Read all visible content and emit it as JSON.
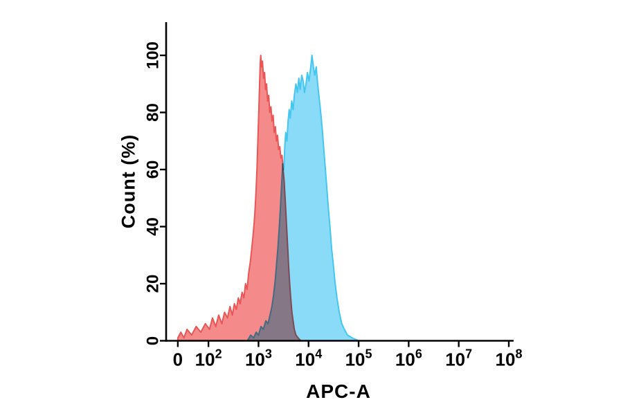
{
  "figure": {
    "background": "#ffffff",
    "axis_color": "#000000"
  },
  "chart_data": {
    "type": "area",
    "title": "",
    "xlabel": "APC-A",
    "ylabel": "Count (%)",
    "x_scale": "biexponential-log",
    "ylim": [
      0,
      100
    ],
    "grid": false,
    "legend": "none",
    "y_ticks": [
      {
        "label": "0",
        "value": 0
      },
      {
        "label": "20",
        "value": 20
      },
      {
        "label": "40",
        "value": 40
      },
      {
        "label": "60",
        "value": 60
      },
      {
        "label": "80",
        "value": 80
      },
      {
        "label": "100",
        "value": 100
      }
    ],
    "x_ticks": [
      {
        "main": "0",
        "exp": "",
        "value": 0
      },
      {
        "main": "10",
        "exp": "2",
        "value": 100
      },
      {
        "main": "10",
        "exp": "3",
        "value": 1000
      },
      {
        "main": "10",
        "exp": "4",
        "value": 10000
      },
      {
        "main": "10",
        "exp": "5",
        "value": 100000
      },
      {
        "main": "10",
        "exp": "6",
        "value": 1000000
      },
      {
        "main": "10",
        "exp": "7",
        "value": 10000000
      },
      {
        "main": "10",
        "exp": "8",
        "value": 100000000
      }
    ],
    "series": [
      {
        "name": "red-histogram",
        "fill": "#F58A8A",
        "stroke": "#EA5555",
        "points": [
          [
            0,
            1
          ],
          [
            10,
            3
          ],
          [
            20,
            1
          ],
          [
            30,
            4
          ],
          [
            45,
            2
          ],
          [
            60,
            5
          ],
          [
            75,
            3
          ],
          [
            90,
            6
          ],
          [
            105,
            4
          ],
          [
            120,
            8
          ],
          [
            140,
            5
          ],
          [
            160,
            9
          ],
          [
            185,
            6
          ],
          [
            210,
            10
          ],
          [
            240,
            8
          ],
          [
            270,
            12
          ],
          [
            300,
            9
          ],
          [
            330,
            13
          ],
          [
            360,
            11
          ],
          [
            395,
            15
          ],
          [
            430,
            13
          ],
          [
            470,
            17
          ],
          [
            510,
            15
          ],
          [
            550,
            20
          ],
          [
            590,
            18
          ],
          [
            640,
            24
          ],
          [
            690,
            28
          ],
          [
            740,
            33
          ],
          [
            790,
            38
          ],
          [
            840,
            44
          ],
          [
            890,
            52
          ],
          [
            930,
            60
          ],
          [
            970,
            70
          ],
          [
            1010,
            80
          ],
          [
            1050,
            90
          ],
          [
            1080,
            97
          ],
          [
            1110,
            100
          ],
          [
            1150,
            96
          ],
          [
            1200,
            98
          ],
          [
            1260,
            92
          ],
          [
            1320,
            94
          ],
          [
            1380,
            88
          ],
          [
            1450,
            90
          ],
          [
            1520,
            84
          ],
          [
            1600,
            86
          ],
          [
            1680,
            80
          ],
          [
            1770,
            82
          ],
          [
            1860,
            77
          ],
          [
            1960,
            79
          ],
          [
            2060,
            73
          ],
          [
            2170,
            75
          ],
          [
            2280,
            70
          ],
          [
            2400,
            72
          ],
          [
            2530,
            67
          ],
          [
            2660,
            68
          ],
          [
            2800,
            64
          ],
          [
            2950,
            65
          ],
          [
            3100,
            60
          ],
          [
            3250,
            56
          ],
          [
            3400,
            50
          ],
          [
            3550,
            44
          ],
          [
            3700,
            38
          ],
          [
            3850,
            32
          ],
          [
            4000,
            26
          ],
          [
            4200,
            20
          ],
          [
            4400,
            15
          ],
          [
            4650,
            10
          ],
          [
            4900,
            7
          ],
          [
            5200,
            4
          ],
          [
            5600,
            2
          ],
          [
            6200,
            1
          ],
          [
            7000,
            0
          ]
        ]
      },
      {
        "name": "blue-histogram",
        "fill": "#8ADBF7",
        "stroke": "#45C6F0",
        "points": [
          [
            600,
            0
          ],
          [
            700,
            2
          ],
          [
            800,
            1
          ],
          [
            900,
            3
          ],
          [
            1000,
            2
          ],
          [
            1120,
            5
          ],
          [
            1250,
            4
          ],
          [
            1400,
            7
          ],
          [
            1550,
            6
          ],
          [
            1700,
            9
          ],
          [
            1850,
            12
          ],
          [
            2000,
            16
          ],
          [
            2150,
            21
          ],
          [
            2300,
            27
          ],
          [
            2450,
            33
          ],
          [
            2600,
            40
          ],
          [
            2750,
            47
          ],
          [
            2900,
            55
          ],
          [
            3050,
            62
          ],
          [
            3200,
            60
          ],
          [
            3350,
            68
          ],
          [
            3500,
            73
          ],
          [
            3700,
            70
          ],
          [
            3900,
            77
          ],
          [
            4100,
            81
          ],
          [
            4300,
            78
          ],
          [
            4600,
            84
          ],
          [
            4900,
            81
          ],
          [
            5200,
            86
          ],
          [
            5600,
            90
          ],
          [
            6000,
            87
          ],
          [
            6400,
            92
          ],
          [
            6800,
            88
          ],
          [
            7300,
            93
          ],
          [
            7800,
            91
          ],
          [
            8300,
            87
          ],
          [
            8900,
            90
          ],
          [
            9500,
            94
          ],
          [
            10200,
            91
          ],
          [
            10900,
            95
          ],
          [
            11700,
            100
          ],
          [
            12500,
            96
          ],
          [
            13300,
            93
          ],
          [
            14200,
            96
          ],
          [
            15200,
            90
          ],
          [
            16300,
            85
          ],
          [
            17500,
            80
          ],
          [
            18800,
            74
          ],
          [
            20200,
            67
          ],
          [
            21700,
            60
          ],
          [
            23300,
            53
          ],
          [
            25000,
            46
          ],
          [
            27000,
            39
          ],
          [
            29000,
            32
          ],
          [
            31500,
            26
          ],
          [
            34000,
            20
          ],
          [
            37000,
            15
          ],
          [
            41000,
            10
          ],
          [
            46000,
            6
          ],
          [
            52000,
            4
          ],
          [
            60000,
            2
          ],
          [
            75000,
            1
          ],
          [
            100000,
            0
          ]
        ]
      }
    ]
  }
}
